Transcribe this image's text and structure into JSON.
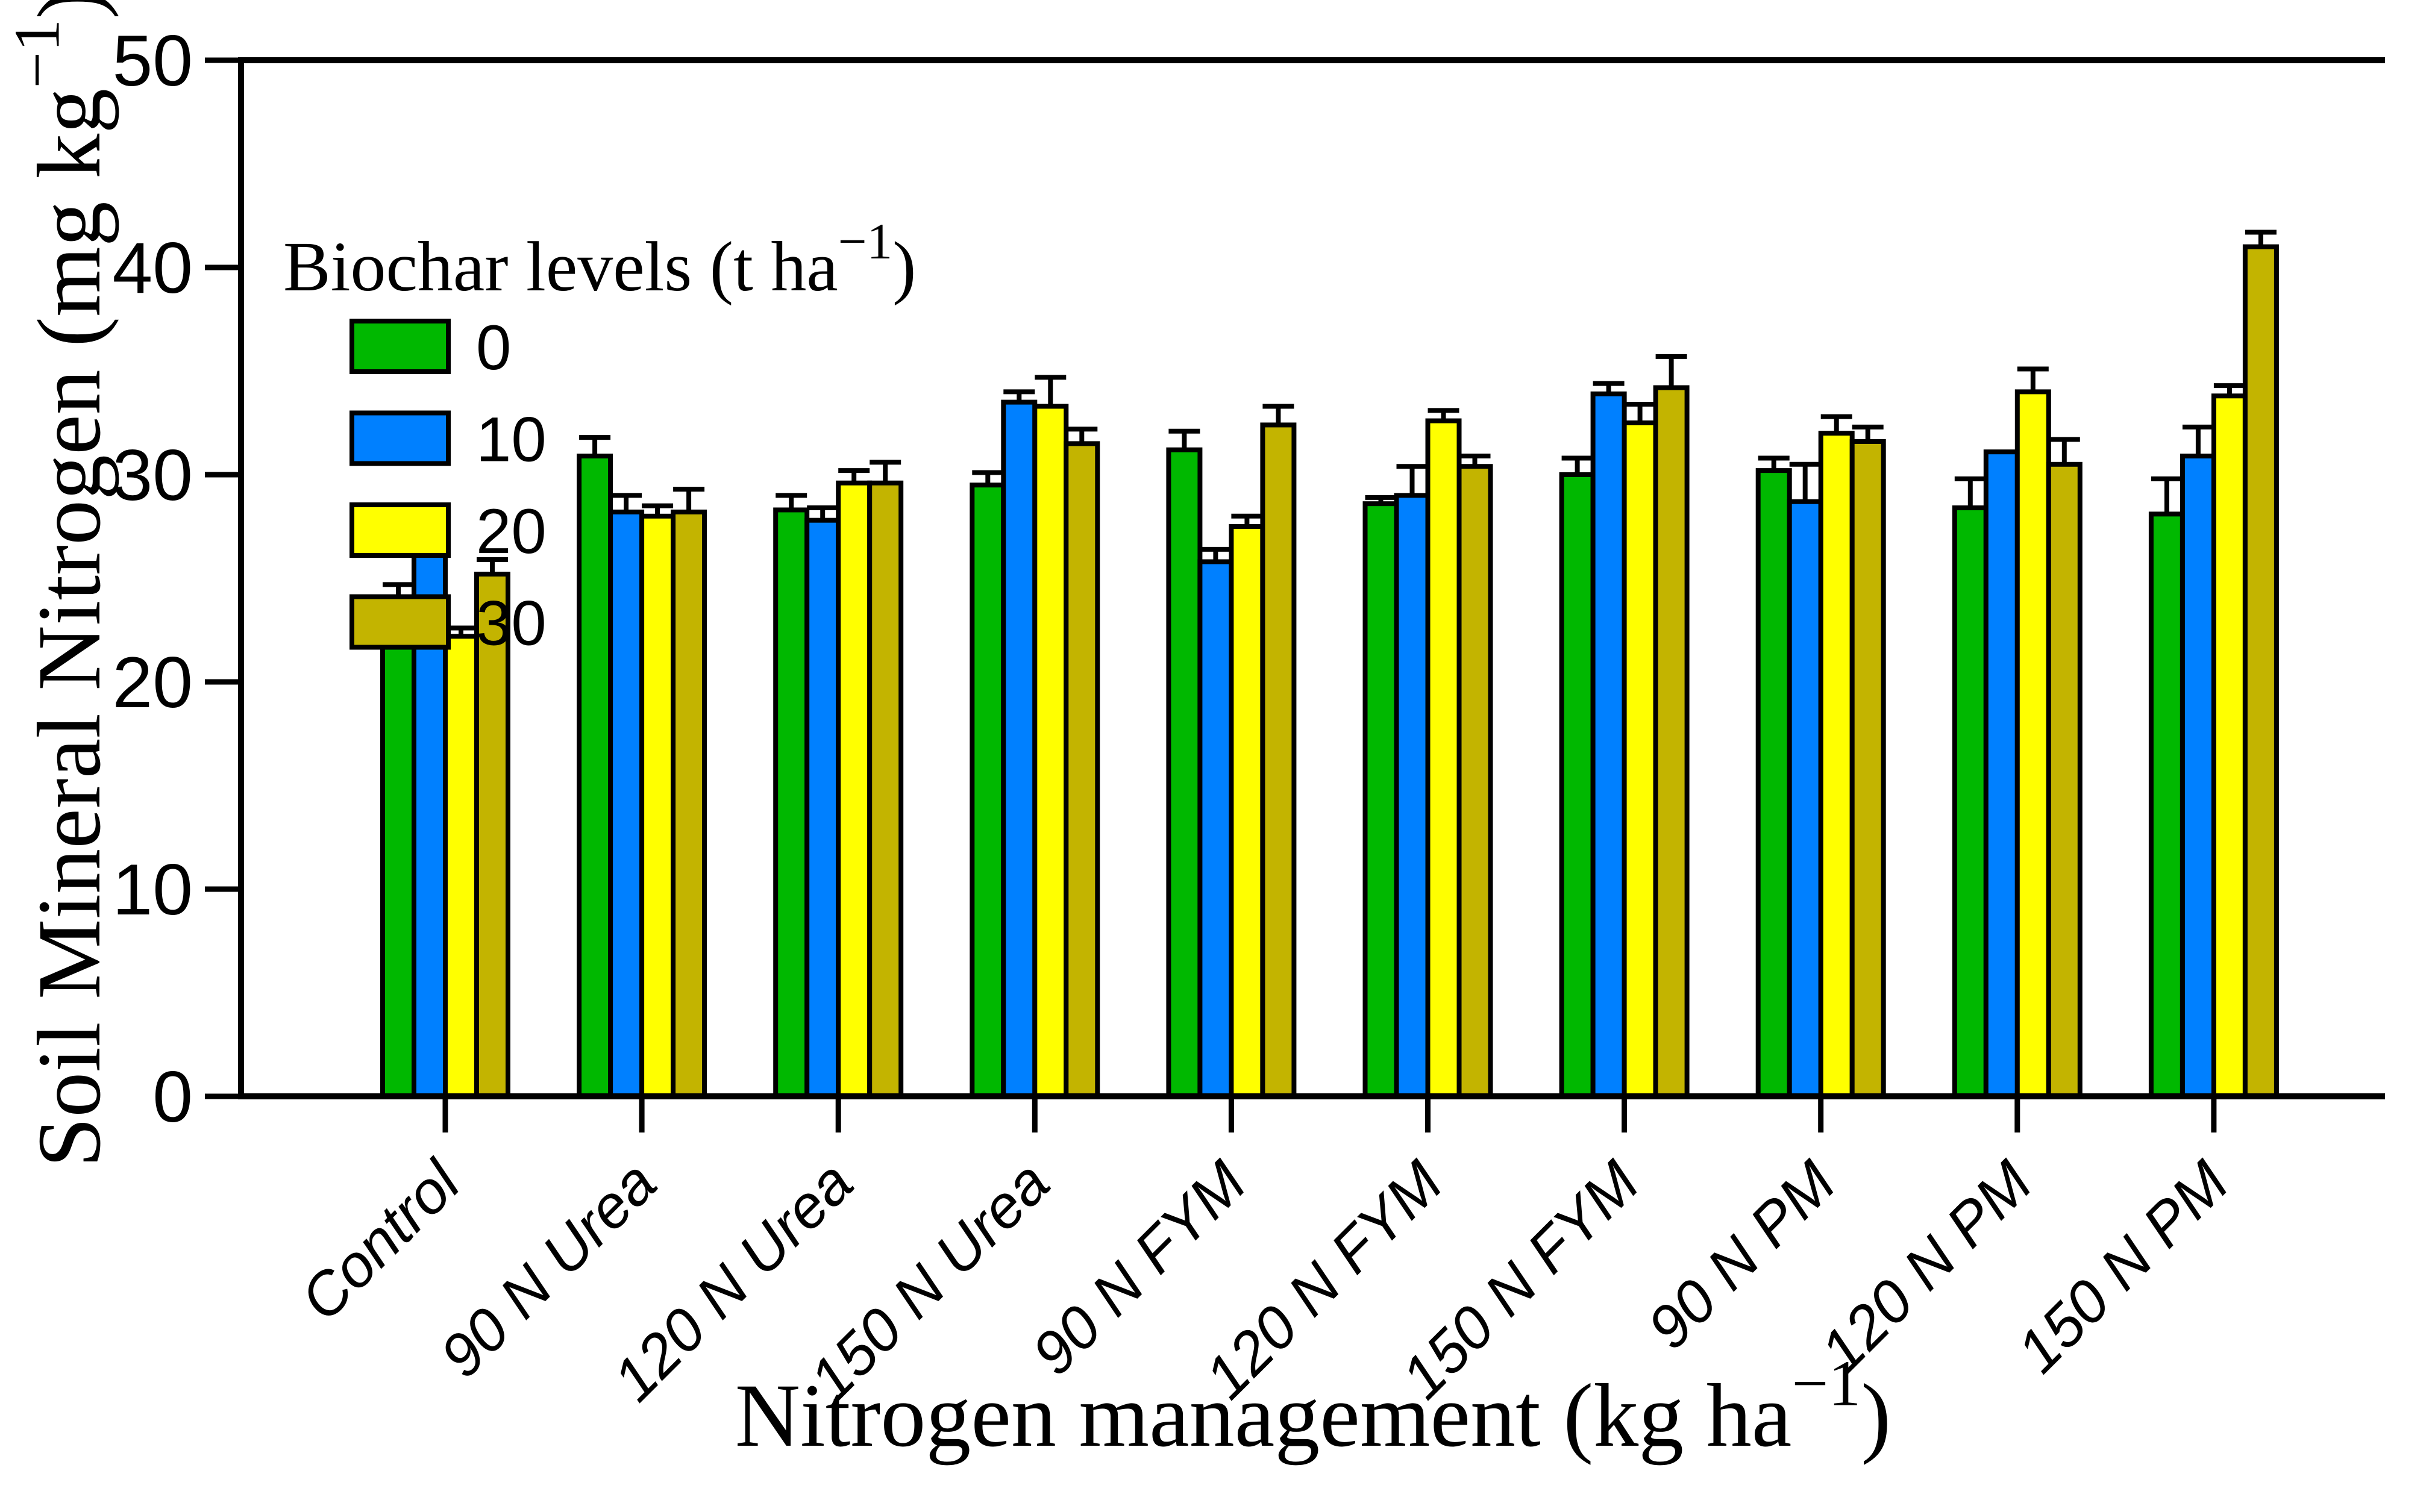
{
  "chart_data": {
    "type": "bar",
    "title": "",
    "grid": false,
    "background": "#ffffff",
    "axis_color": "#000000",
    "bar_outline_color": "#000000",
    "x_axis": {
      "label_pre": "Nitrogen management (kg ha",
      "label_sup": "−1",
      "label_post": ")"
    },
    "y_axis": {
      "label_pre": "Soil Mineral Nitrogen (mg kg",
      "label_sup": "−1",
      "label_post": ")",
      "min": 0,
      "max": 50,
      "ticks": [
        0,
        10,
        20,
        30,
        40,
        50
      ]
    },
    "categories": [
      "Control",
      "90 N Urea",
      "120 N Urea",
      "150 N Urea",
      "90 N FYM",
      "120 N FYM",
      "150 N FYM",
      "90 N PM",
      "120 N PM",
      "150 N PM"
    ],
    "legend": {
      "position": "top-left",
      "title_pre": "Biochar levels (t ha",
      "title_sup": "−1",
      "title_post": ")"
    },
    "series": [
      {
        "name": "0",
        "color": "#00B800",
        "values": [
          23.7,
          30.9,
          28.3,
          29.5,
          31.2,
          28.6,
          30.0,
          30.2,
          28.4,
          28.1
        ],
        "errors": [
          1.0,
          0.9,
          0.7,
          0.6,
          0.9,
          0.3,
          0.8,
          0.6,
          1.4,
          1.7
        ]
      },
      {
        "name": "10",
        "color": "#0080FF",
        "values": [
          27.6,
          28.2,
          27.8,
          33.5,
          25.8,
          29.0,
          33.9,
          28.7,
          31.1,
          30.9
        ],
        "errors": [
          0.8,
          0.8,
          0.6,
          0.5,
          0.6,
          1.4,
          0.5,
          1.8,
          0,
          1.4
        ]
      },
      {
        "name": "20",
        "color": "#FFFF00",
        "values": [
          22.2,
          28.0,
          29.6,
          33.3,
          27.5,
          32.6,
          32.5,
          32.0,
          34.0,
          33.8
        ],
        "errors": [
          0.4,
          0.5,
          0.6,
          1.4,
          0.5,
          0.5,
          0.9,
          0.8,
          1.1,
          0.5
        ]
      },
      {
        "name": "30",
        "color": "#C3B400",
        "values": [
          25.2,
          28.2,
          29.6,
          31.5,
          32.4,
          30.4,
          34.2,
          31.6,
          30.5,
          41.0
        ],
        "errors": [
          0.7,
          1.1,
          1.0,
          0.7,
          0.9,
          0.5,
          1.5,
          0.7,
          1.2,
          0.7
        ]
      }
    ]
  }
}
